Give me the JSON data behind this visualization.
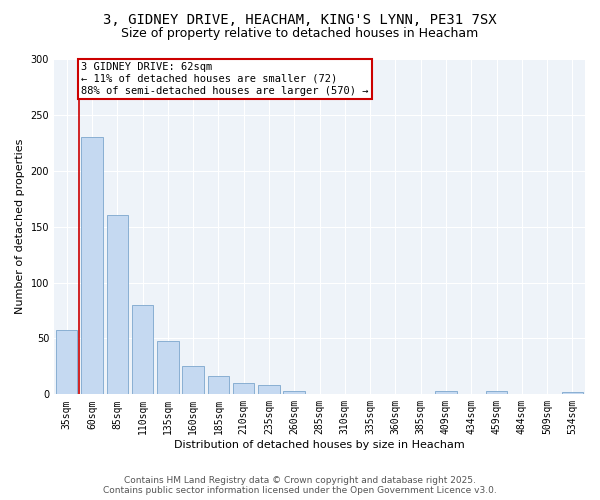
{
  "title_line1": "3, GIDNEY DRIVE, HEACHAM, KING'S LYNN, PE31 7SX",
  "title_line2": "Size of property relative to detached houses in Heacham",
  "xlabel": "Distribution of detached houses by size in Heacham",
  "ylabel": "Number of detached properties",
  "categories": [
    "35sqm",
    "60sqm",
    "85sqm",
    "110sqm",
    "135sqm",
    "160sqm",
    "185sqm",
    "210sqm",
    "235sqm",
    "260sqm",
    "285sqm",
    "310sqm",
    "335sqm",
    "360sqm",
    "385sqm",
    "409sqm",
    "434sqm",
    "459sqm",
    "484sqm",
    "509sqm",
    "534sqm"
  ],
  "values": [
    58,
    230,
    160,
    80,
    48,
    25,
    16,
    10,
    8,
    3,
    0,
    0,
    0,
    0,
    0,
    3,
    0,
    3,
    0,
    0,
    2
  ],
  "bar_color": "#c5d9f1",
  "bar_edge_color": "#7ca6cd",
  "annotation_label": "3 GIDNEY DRIVE: 62sqm",
  "annotation_line2": "← 11% of detached houses are smaller (72)",
  "annotation_line3": "88% of semi-detached houses are larger (570) →",
  "annotation_box_color": "#ffffff",
  "annotation_box_edge_color": "#cc0000",
  "vline_color": "#cc0000",
  "ylim": [
    0,
    300
  ],
  "yticks": [
    0,
    50,
    100,
    150,
    200,
    250,
    300
  ],
  "footer_line1": "Contains HM Land Registry data © Crown copyright and database right 2025.",
  "footer_line2": "Contains public sector information licensed under the Open Government Licence v3.0.",
  "bg_color": "#ffffff",
  "plot_bg_color": "#eef3f9",
  "grid_color": "#ffffff",
  "title_fontsize": 10,
  "subtitle_fontsize": 9,
  "axis_label_fontsize": 8,
  "tick_fontsize": 7,
  "annotation_fontsize": 7.5,
  "footer_fontsize": 6.5
}
